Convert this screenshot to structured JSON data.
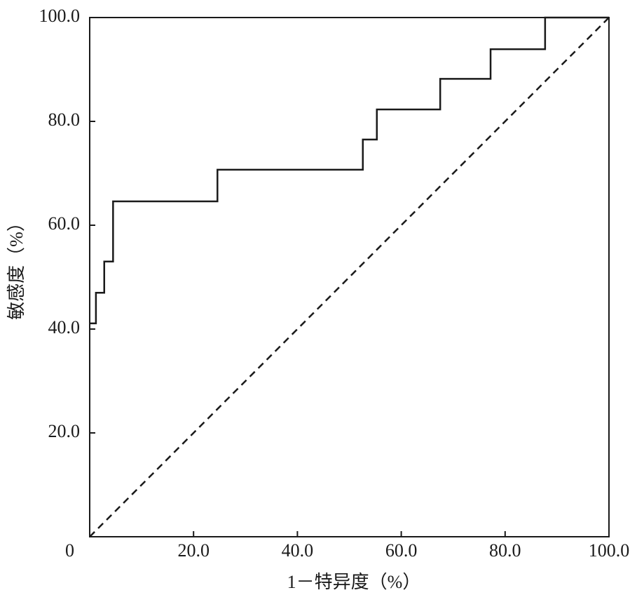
{
  "chart_data": {
    "type": "line",
    "x_label": "1－特异度（%）",
    "y_label": "敏感度（%）",
    "xlim": [
      0,
      100
    ],
    "ylim": [
      0,
      100
    ],
    "xticks": [
      0,
      {
        "value": 20,
        "label": "20.0"
      },
      {
        "value": 40,
        "label": "40.0"
      },
      {
        "value": 60,
        "label": "60.0"
      },
      {
        "value": 80,
        "label": "80.0"
      },
      {
        "value": 100,
        "label": "100.0"
      }
    ],
    "yticks": [
      {
        "value": 20,
        "label": "20.0"
      },
      {
        "value": 40,
        "label": "40.0"
      },
      {
        "value": 60,
        "label": "60.0"
      },
      {
        "value": 80,
        "label": "80.0"
      },
      {
        "value": 100,
        "label": "100.0"
      }
    ],
    "series": [
      {
        "color": "#1a1a1a",
        "x": [
          0,
          1.2,
          1.2,
          2.8,
          2.8,
          4.5,
          4.5,
          24.6,
          24.6,
          52.6,
          52.6,
          55.3,
          55.3,
          67.5,
          67.5,
          77.2,
          77.2,
          87.7,
          87.7,
          100
        ],
        "values": [
          41.1,
          41.1,
          47.0,
          47.0,
          53.0,
          53.0,
          64.6,
          64.6,
          70.7,
          70.7,
          76.5,
          76.5,
          82.3,
          82.3,
          88.2,
          88.2,
          93.9,
          93.9,
          100,
          100
        ]
      },
      {
        "color": "#1a1a1a",
        "dashed": true,
        "x": [
          0,
          100
        ],
        "values": [
          0,
          100
        ]
      }
    ]
  }
}
